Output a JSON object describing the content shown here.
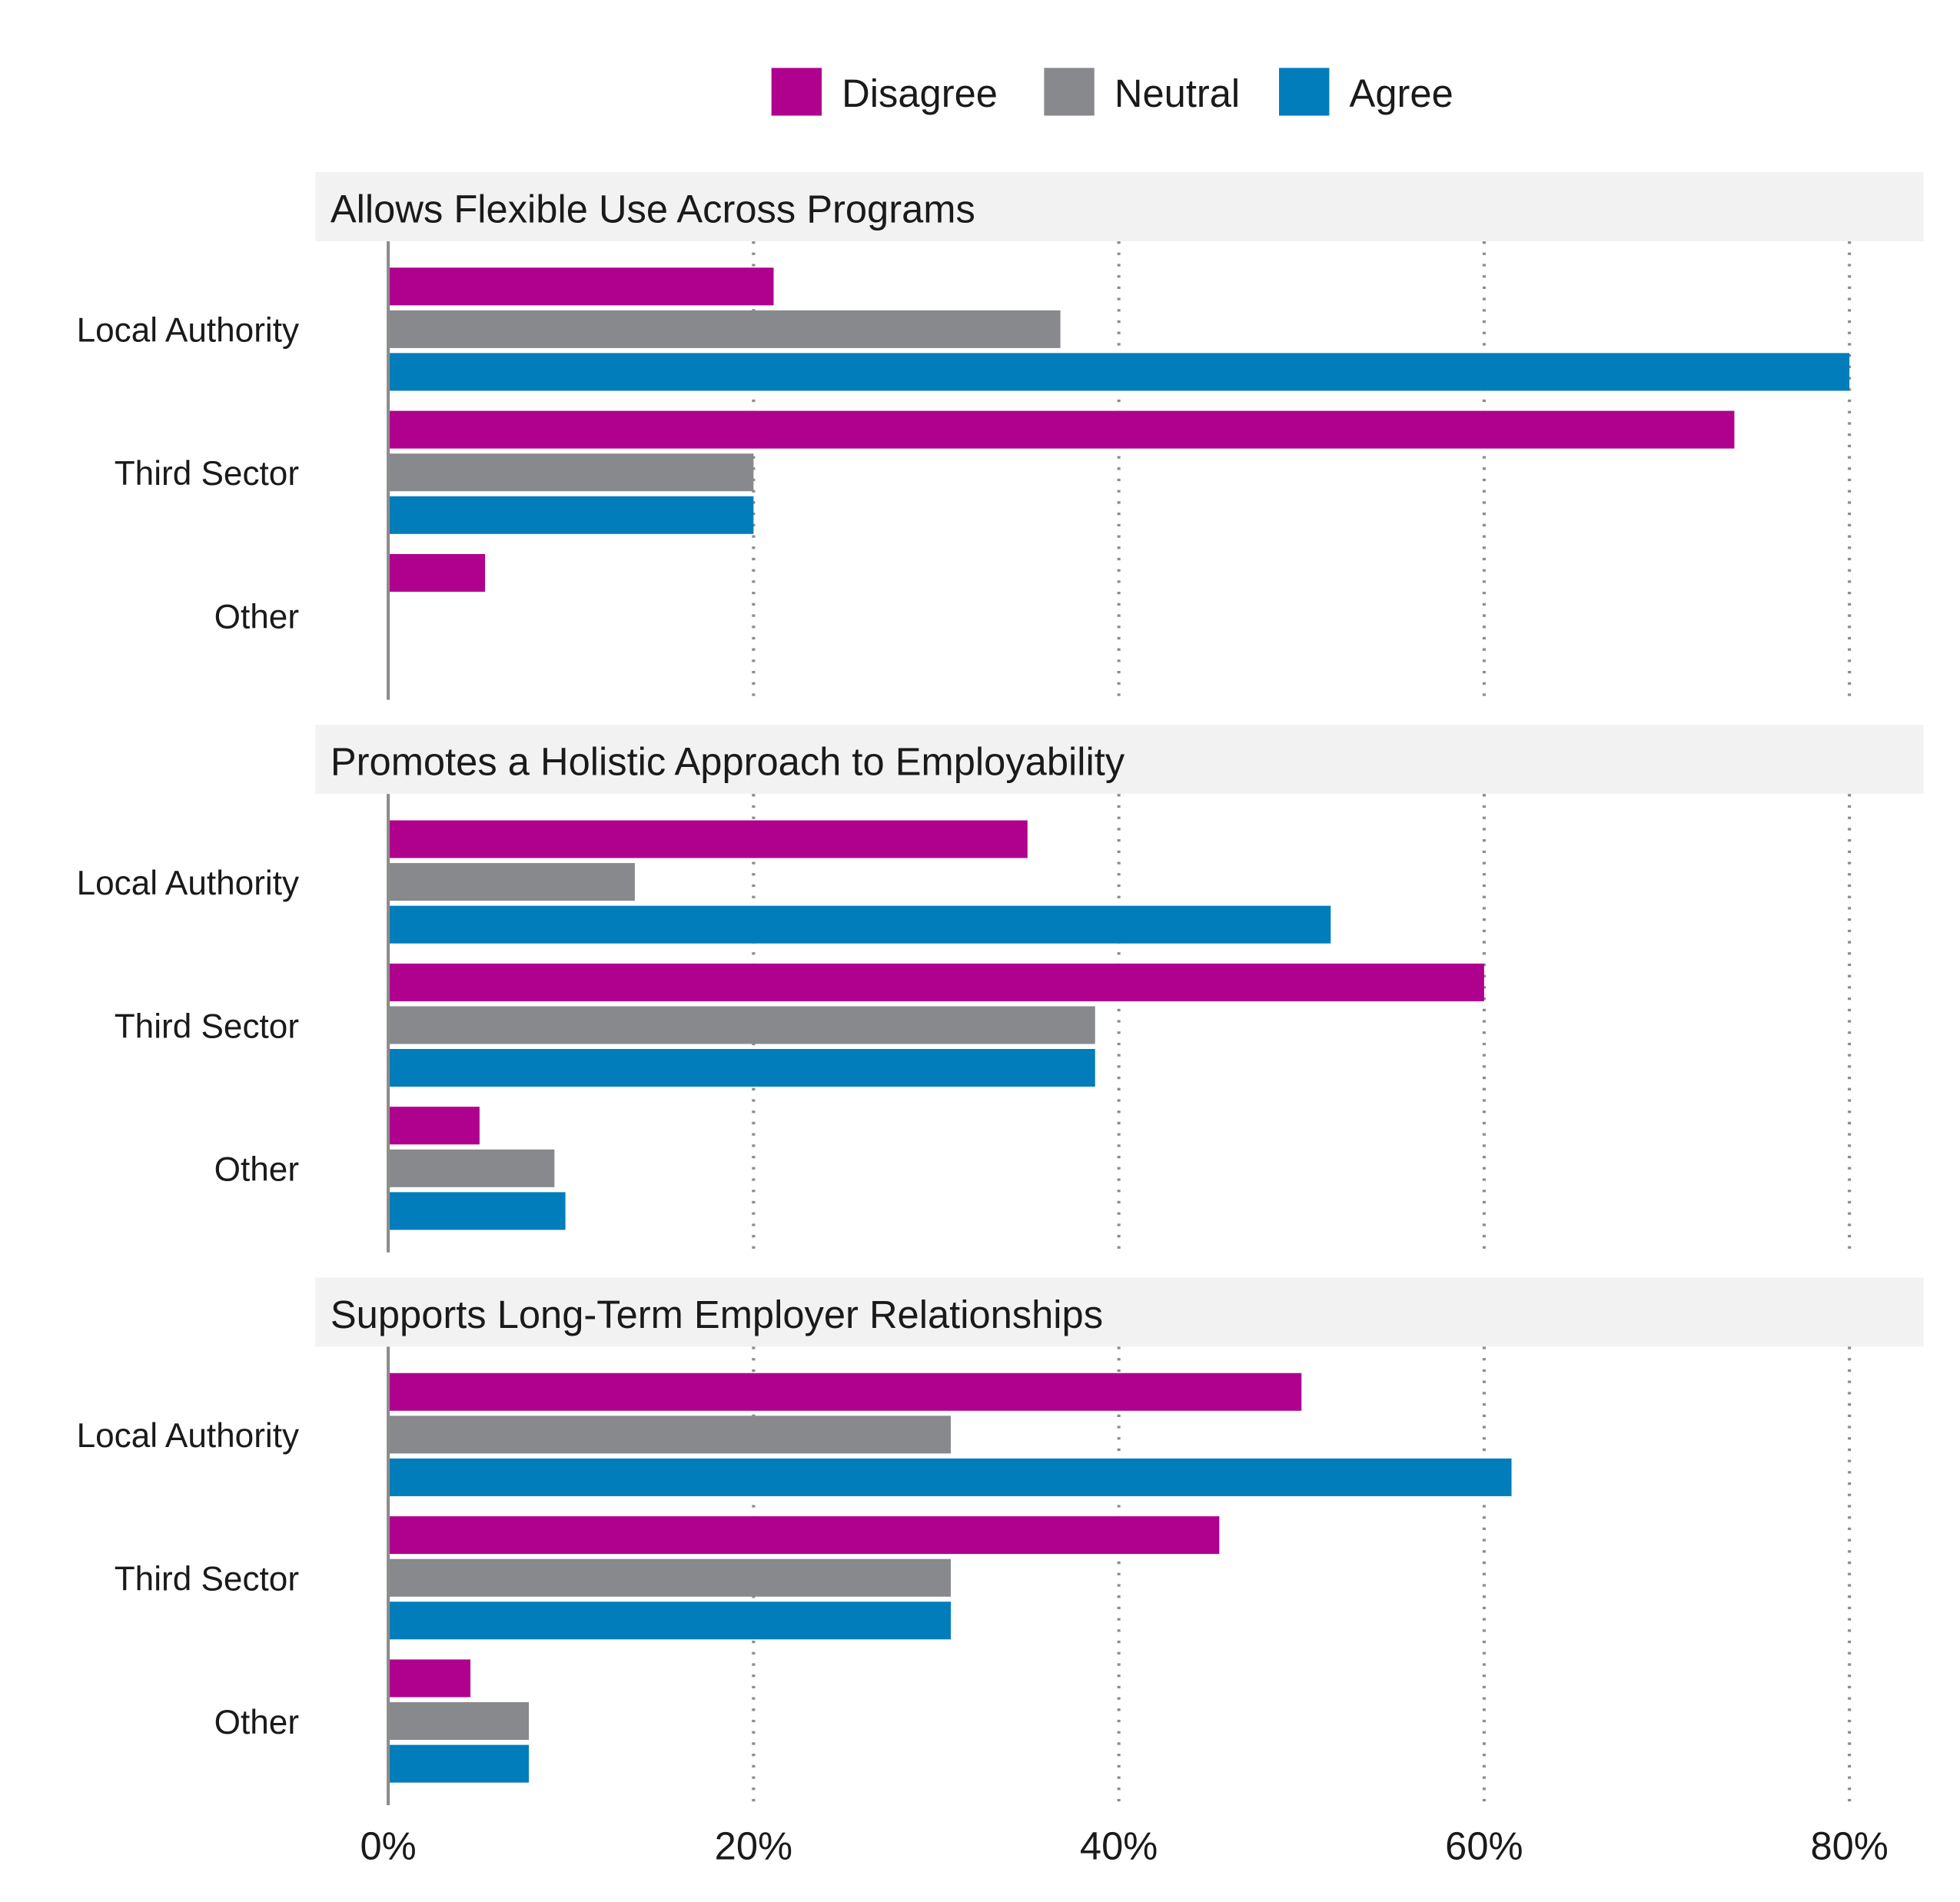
{
  "chart_data": {
    "type": "bar",
    "orientation": "horizontal",
    "legend": {
      "position": "top",
      "entries": [
        "Disagree",
        "Neutral",
        "Agree"
      ]
    },
    "colors": {
      "Disagree": "#B0008E",
      "Neutral": "#87898C",
      "Agree": "#007DBA"
    },
    "categories": [
      "Local Authority",
      "Third Sector",
      "Other"
    ],
    "xlim": [
      0,
      80
    ],
    "x_ticks": [
      0,
      20,
      40,
      60,
      80
    ],
    "x_tick_labels": [
      "0%",
      "20%",
      "40%",
      "60%",
      "80%"
    ],
    "grid": "vertical dotted",
    "panels": [
      {
        "title": "Allows Flexible Use Across Programs",
        "series": [
          {
            "name": "Disagree",
            "values": [
              21.1,
              73.7,
              5.3
            ]
          },
          {
            "name": "Neutral",
            "values": [
              36.8,
              20.0,
              0
            ]
          },
          {
            "name": "Agree",
            "values": [
              80.0,
              20.0,
              0
            ]
          }
        ]
      },
      {
        "title": "Promotes a Holistic Approach to Employability",
        "series": [
          {
            "name": "Disagree",
            "values": [
              35.0,
              60.0,
              5.0
            ]
          },
          {
            "name": "Neutral",
            "values": [
              13.5,
              38.7,
              9.1
            ]
          },
          {
            "name": "Agree",
            "values": [
              51.6,
              38.7,
              9.7
            ]
          }
        ]
      },
      {
        "title": "Supports Long-Term Employer Relationships",
        "series": [
          {
            "name": "Disagree",
            "values": [
              50.0,
              45.5,
              4.5
            ]
          },
          {
            "name": "Neutral",
            "values": [
              30.8,
              30.8,
              7.7
            ]
          },
          {
            "name": "Agree",
            "values": [
              61.5,
              30.8,
              7.7
            ]
          }
        ]
      }
    ]
  }
}
